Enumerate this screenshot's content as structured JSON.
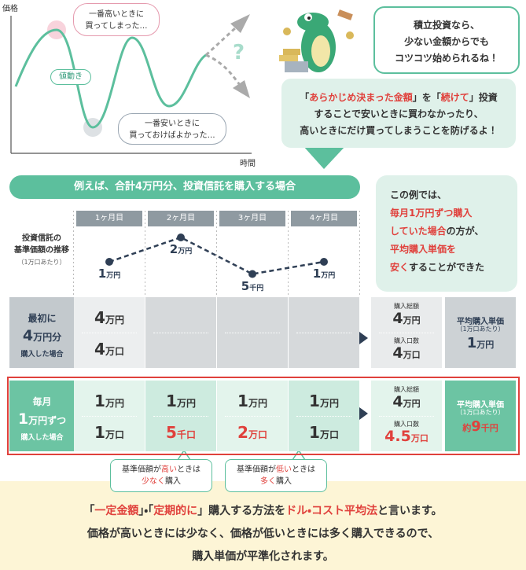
{
  "chart_section": {
    "y_label": "価格",
    "x_label": "時間",
    "bubble_high": [
      "一番高いときに",
      "買ってしまった…"
    ],
    "movement_label": "値動き",
    "bubble_low": [
      "一番安いときに",
      "買っておけばよかった…"
    ],
    "question": "?"
  },
  "speech": [
    "積立投資なら、",
    "少ない金額からでも",
    "コツコツ始められるね！"
  ],
  "explanation": [
    [
      {
        "text": "「"
      },
      {
        "text": "あらかじめ決まった金額",
        "red": true
      },
      {
        "text": "」を「"
      },
      {
        "text": "続けて",
        "red": true
      },
      {
        "text": "」投資"
      }
    ],
    [
      {
        "text": "することで安いときに買わなかったり、"
      }
    ],
    [
      {
        "text": "高いときにだけ買ってしまうことを防げるよ！"
      }
    ]
  ],
  "banner": "例えば、合計4万円分、投資信託を購入する場合",
  "example_box": [
    [
      {
        "text": "この例では、"
      }
    ],
    [
      {
        "text": "毎月1万円ずつ購入",
        "red": true
      }
    ],
    [
      {
        "text": "していた場合",
        "red": true
      },
      {
        "text": "の方が、"
      }
    ],
    [
      {
        "text": "平均購入単価を",
        "red": true
      }
    ],
    [
      {
        "text": "安く",
        "red": true
      },
      {
        "text": "することができた"
      }
    ]
  ],
  "months": [
    "1ヶ月目",
    "2ヶ月目",
    "3ヶ月目",
    "4ヶ月目"
  ],
  "price_row": {
    "label": [
      "投資信託の",
      "基準価額の推移"
    ],
    "note": "（1万口あたり）",
    "values": [
      1,
      2,
      0.5,
      1
    ],
    "labels": [
      {
        "num": "1",
        "unit": "万円"
      },
      {
        "num": "2",
        "unit": "万円"
      },
      {
        "num": "5",
        "unit": "千円"
      },
      {
        "num": "1",
        "unit": "万円"
      }
    ]
  },
  "rows": [
    {
      "style": "gray",
      "label": {
        "top": "最初に",
        "num": "4",
        "unit": "万円分",
        "bottom": "購入した場合"
      },
      "amounts": [
        {
          "num": "4",
          "unit": "万円"
        }
      ],
      "units": [
        {
          "num": "4",
          "unit": "万口"
        }
      ],
      "total_label": "購入総額",
      "total": {
        "num": "4",
        "unit": "万円"
      },
      "count_label": "購入口数",
      "count": {
        "num": "4",
        "unit": "万口"
      },
      "avg_label": "平均購入単価",
      "avg_note": "（1万口あたり）",
      "avg": {
        "num": "1",
        "unit": "万円"
      }
    },
    {
      "style": "green",
      "label": {
        "top": "毎月",
        "num": "1",
        "unit": "万円ずつ",
        "bottom": "購入した場合"
      },
      "amounts": [
        {
          "num": "1",
          "unit": "万円"
        },
        {
          "num": "1",
          "unit": "万円"
        },
        {
          "num": "1",
          "unit": "万円"
        },
        {
          "num": "1",
          "unit": "万円"
        }
      ],
      "units": [
        {
          "num": "1",
          "unit": "万口"
        },
        {
          "num": "5",
          "unit": "千口",
          "red": true
        },
        {
          "num": "2",
          "unit": "万口",
          "red": true
        },
        {
          "num": "1",
          "unit": "万口"
        }
      ],
      "total_label": "購入総額",
      "total": {
        "num": "4",
        "unit": "万円"
      },
      "count_label": "購入口数",
      "count": {
        "num": "4.5",
        "unit": "万口",
        "red": true
      },
      "avg_label": "平均購入単価",
      "avg_note": "（1万口あたり）",
      "avg": {
        "pre": "約",
        "num": "9",
        "unit": "千円",
        "red": true
      }
    }
  ],
  "callouts": [
    [
      [
        {
          "text": "基準価額が"
        },
        {
          "text": "高い",
          "red": true
        },
        {
          "text": "ときは"
        }
      ],
      [
        {
          "text": "少なく",
          "red": true
        },
        {
          "text": "購入"
        }
      ]
    ],
    [
      [
        {
          "text": "基準価額が"
        },
        {
          "text": "低い",
          "red": true
        },
        {
          "text": "ときは"
        }
      ],
      [
        {
          "text": "多く",
          "red": true
        },
        {
          "text": "購入"
        }
      ]
    ]
  ],
  "conclusion": [
    [
      {
        "text": "「"
      },
      {
        "text": "一定金額",
        "red": true
      },
      {
        "text": "」・「"
      },
      {
        "text": "定期的に",
        "red": true
      },
      {
        "text": "」購入する方法を"
      },
      {
        "text": "ドル・コスト平均法",
        "red": true
      },
      {
        "text": "と言います。"
      }
    ],
    [
      {
        "text": "価格が高いときには少なく、価格が低いときには多く購入できるので、"
      }
    ],
    [
      {
        "text": "購入単価が平準化されます。"
      }
    ]
  ]
}
